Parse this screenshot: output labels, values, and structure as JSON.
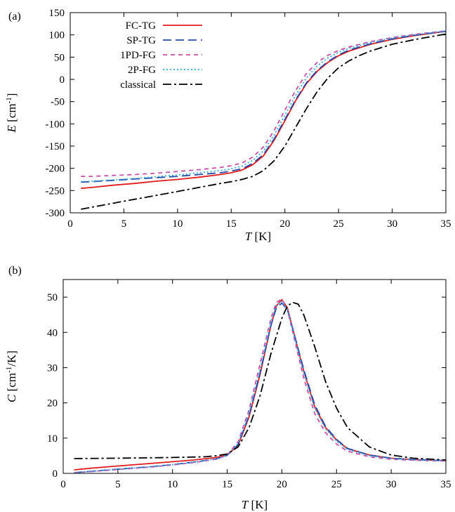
{
  "chart_data": [
    {
      "panel": "(a)",
      "type": "line",
      "ylabel": {
        "sym": "E",
        "unit": " [cm",
        "sup": "-1",
        "tail": "]"
      },
      "xlabel": {
        "sym": "T",
        "unit": " [K]"
      },
      "xlim": [
        0,
        35
      ],
      "ylim": [
        -300,
        150
      ],
      "xticks": [
        0,
        5,
        10,
        15,
        20,
        25,
        30,
        35
      ],
      "yticks": [
        -300,
        -250,
        -200,
        -150,
        -100,
        -50,
        0,
        50,
        100,
        150
      ],
      "legend_position": "top-left",
      "series": [
        {
          "name": "FC-TG",
          "color": "#e31a1c",
          "dash": "",
          "x": [
            1,
            2,
            4,
            6,
            8,
            10,
            12,
            14,
            15,
            16,
            17,
            18,
            19,
            20,
            21,
            22,
            23,
            24,
            25,
            26,
            28,
            30,
            32,
            35
          ],
          "y": [
            -245,
            -243,
            -238,
            -234,
            -229,
            -225,
            -220,
            -214,
            -210,
            -204,
            -192,
            -172,
            -137,
            -93,
            -48,
            -10,
            18,
            38,
            53,
            64,
            79,
            90,
            98,
            108
          ]
        },
        {
          "name": "SP-TG",
          "color": "#2a4aa8",
          "dash": "12,6",
          "x": [
            1,
            2,
            4,
            6,
            8,
            10,
            12,
            14,
            15,
            16,
            17,
            18,
            19,
            20,
            21,
            22,
            23,
            24,
            25,
            26,
            28,
            30,
            32,
            35
          ],
          "y": [
            -231,
            -230,
            -227,
            -224,
            -221,
            -218,
            -214,
            -210,
            -206,
            -201,
            -189,
            -169,
            -134,
            -90,
            -46,
            -8,
            20,
            40,
            55,
            66,
            80,
            91,
            99,
            108
          ]
        },
        {
          "name": "1PD-FG",
          "color": "#c850a8",
          "dash": "6,5",
          "x": [
            1,
            2,
            4,
            6,
            8,
            10,
            12,
            14,
            15,
            16,
            17,
            18,
            19,
            20,
            21,
            22,
            23,
            24,
            25,
            26,
            28,
            30,
            32,
            35
          ],
          "y": [
            -218,
            -218,
            -216,
            -214,
            -211,
            -207,
            -203,
            -198,
            -194,
            -188,
            -175,
            -152,
            -115,
            -69,
            -25,
            13,
            38,
            54,
            65,
            73,
            85,
            94,
            101,
            109
          ]
        },
        {
          "name": "2P-FG",
          "color": "#33aadd",
          "dash": "2,3",
          "x": [
            1,
            2,
            4,
            6,
            8,
            10,
            12,
            14,
            15,
            16,
            17,
            18,
            19,
            20,
            21,
            22,
            23,
            24,
            25,
            26,
            28,
            30,
            32,
            35
          ],
          "y": [
            -230,
            -229,
            -226,
            -223,
            -219,
            -215,
            -210,
            -205,
            -201,
            -195,
            -182,
            -161,
            -125,
            -80,
            -36,
            3,
            30,
            48,
            61,
            70,
            83,
            93,
            100,
            109
          ]
        },
        {
          "name": "classical",
          "color": "#000000",
          "dash": "12,4,3,4",
          "x": [
            1,
            3,
            5,
            8,
            10,
            12,
            14,
            15,
            16,
            17,
            18,
            19,
            20,
            21,
            22,
            23,
            24,
            25,
            26,
            27,
            28,
            30,
            32,
            35
          ],
          "y": [
            -292,
            -283,
            -274,
            -261,
            -252,
            -243,
            -234,
            -230,
            -225,
            -218,
            -205,
            -183,
            -150,
            -108,
            -66,
            -28,
            3,
            26,
            42,
            54,
            64,
            79,
            89,
            102
          ]
        }
      ]
    },
    {
      "panel": "(b)",
      "type": "line",
      "ylabel": {
        "sym": "C",
        "unit": " [cm",
        "sup": "-1",
        "tail": "/K]"
      },
      "xlabel": {
        "sym": "T",
        "unit": " [K]"
      },
      "xlim": [
        0,
        35
      ],
      "ylim": [
        0,
        55
      ],
      "xticks": [
        0,
        5,
        10,
        15,
        20,
        25,
        30,
        35
      ],
      "yticks": [
        0,
        10,
        20,
        30,
        40,
        50
      ],
      "series": [
        {
          "name": "FC-TG",
          "color": "#e31a1c",
          "dash": "",
          "x": [
            1,
            3,
            5,
            8,
            10,
            12,
            14,
            15,
            16,
            17,
            18,
            19,
            19.5,
            20,
            20.5,
            21,
            22,
            23,
            24,
            25,
            26,
            28,
            30,
            32,
            35
          ],
          "y": [
            1,
            1.6,
            2.1,
            2.8,
            3.3,
            3.8,
            4.5,
            5.2,
            8,
            16,
            28,
            42,
            47.5,
            49.3,
            47,
            41,
            29,
            19,
            13,
            9.5,
            7,
            5.2,
            4.3,
            3.9,
            3.6
          ]
        },
        {
          "name": "SP-TG",
          "color": "#2a4aa8",
          "dash": "12,6",
          "x": [
            1,
            3,
            5,
            8,
            10,
            12,
            14,
            15,
            16,
            17,
            18,
            19,
            19.5,
            20,
            20.5,
            21,
            22,
            23,
            24,
            25,
            26,
            28,
            30,
            32,
            35
          ],
          "y": [
            0.2,
            0.7,
            1.2,
            1.9,
            2.5,
            3.2,
            4.1,
            5.1,
            8.2,
            16.5,
            28.5,
            42,
            47,
            48.3,
            46.5,
            41,
            29.5,
            19.5,
            13.3,
            9.6,
            7.1,
            5.2,
            4.3,
            3.9,
            3.6
          ]
        },
        {
          "name": "1PD-FG",
          "color": "#c850a8",
          "dash": "6,5",
          "x": [
            1,
            3,
            5,
            8,
            10,
            12,
            14,
            15,
            16,
            17,
            18,
            19,
            19.5,
            20,
            20.5,
            21,
            22,
            23,
            24,
            25,
            26,
            28,
            30,
            32,
            35
          ],
          "y": [
            0.2,
            0.6,
            1.1,
            1.8,
            2.4,
            3.1,
            4,
            5.2,
            9,
            18,
            31,
            44,
            48.5,
            49.5,
            46.5,
            40,
            27,
            17,
            11.5,
            8.3,
            6.3,
            4.7,
            4,
            3.7,
            3.5
          ]
        },
        {
          "name": "2P-FG",
          "color": "#33aadd",
          "dash": "2,3",
          "x": [
            1,
            3,
            5,
            8,
            10,
            12,
            14,
            15,
            16,
            17,
            18,
            19,
            19.5,
            20,
            20.5,
            21,
            22,
            23,
            24,
            25,
            26,
            28,
            30,
            32,
            35
          ],
          "y": [
            0.2,
            0.7,
            1.2,
            1.9,
            2.5,
            3.2,
            4.1,
            5.2,
            8.5,
            17,
            29.5,
            43,
            47.8,
            48.8,
            46.5,
            40.5,
            28.5,
            18.5,
            12.6,
            9.1,
            6.8,
            5,
            4.2,
            3.8,
            3.6
          ]
        },
        {
          "name": "classical",
          "color": "#000000",
          "dash": "12,4,3,4",
          "x": [
            1,
            5,
            10,
            13,
            14,
            15,
            16,
            17,
            18,
            19,
            20,
            20.5,
            21,
            21.5,
            22,
            23,
            24,
            25,
            26,
            28,
            30,
            32,
            35
          ],
          "y": [
            4.2,
            4.3,
            4.5,
            4.7,
            5,
            5.5,
            7.5,
            13,
            22,
            34,
            44,
            47.5,
            48.5,
            48,
            45,
            36,
            26,
            18.5,
            13,
            7.5,
            5.2,
            4.3,
            3.8
          ]
        }
      ]
    }
  ]
}
